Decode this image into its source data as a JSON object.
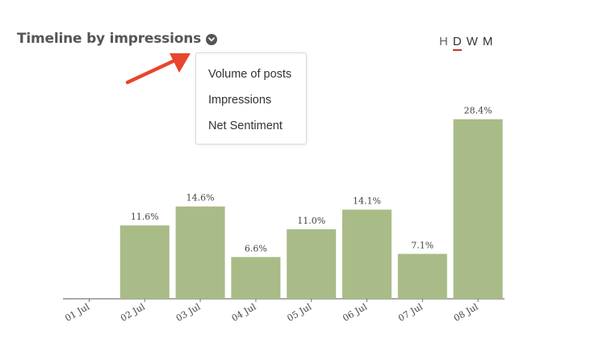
{
  "header": {
    "title": "Timeline by impressions",
    "toggle_icon": "chevron-down-circle-icon"
  },
  "granularity": {
    "options": [
      "H",
      "D",
      "W",
      "M"
    ],
    "selected": "D",
    "accent_color": "#c0392b"
  },
  "dropdown": {
    "items": [
      "Volume of posts",
      "Impressions",
      "Net Sentiment"
    ]
  },
  "annotation": {
    "arrow_icon": "red-arrow-pointer",
    "color": "#e8452c"
  },
  "chart_data": {
    "type": "bar",
    "categories": [
      "01 Jul",
      "02 Jul",
      "03 Jul",
      "04 Jul",
      "05 Jul",
      "06 Jul",
      "07 Jul",
      "08 Jul"
    ],
    "values": [
      null,
      11.6,
      14.6,
      6.6,
      11.0,
      14.1,
      7.1,
      28.4
    ],
    "labels": [
      "",
      "11.6%",
      "14.6%",
      "6.6%",
      "11.0%",
      "14.1%",
      "7.1%",
      "28.4%"
    ],
    "bar_color": "#a9bb87",
    "grid": false,
    "title": "",
    "xlabel": "",
    "ylabel": ""
  }
}
